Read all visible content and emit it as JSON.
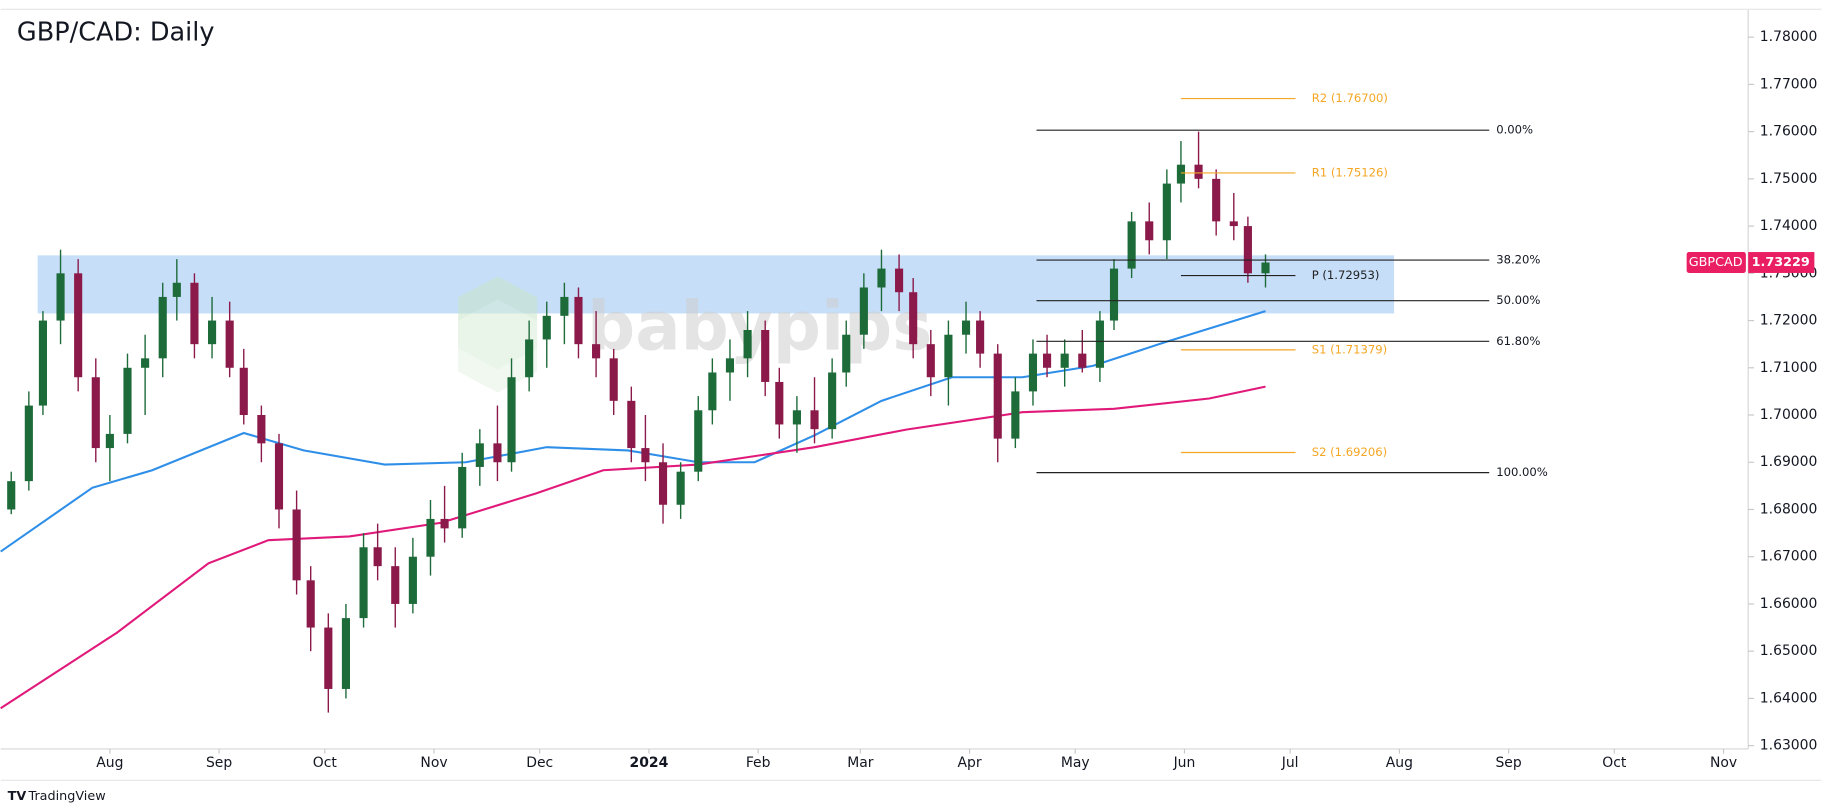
{
  "chart_data": {
    "type": "candlestick",
    "title": "GBP/CAD: Daily",
    "symbol": "GBPCAD",
    "last_price": 1.73229,
    "watermark": "babypips",
    "footer": "TradingView",
    "up_color": "#1e6b3a",
    "down_color": "#8b1a4a",
    "x": [
      3,
      8,
      12,
      17,
      22,
      27,
      31,
      36,
      41,
      46,
      50,
      55,
      60,
      65,
      69,
      74,
      79,
      84,
      88,
      93,
      98,
      103,
      107,
      112,
      117,
      122,
      126,
      131,
      136,
      141,
      145,
      150,
      155,
      160,
      164,
      169,
      174,
      179,
      183,
      188,
      193,
      198,
      202,
      207,
      212,
      217,
      221,
      226,
      231,
      236,
      240,
      245,
      250,
      255,
      259,
      264,
      269,
      274,
      278,
      283,
      288,
      293,
      297,
      302,
      307,
      312,
      316,
      321,
      326,
      331,
      335,
      340,
      345,
      350,
      354,
      359
    ],
    "open": [
      1.68,
      1.686,
      1.702,
      1.72,
      1.73,
      1.708,
      1.693,
      1.696,
      1.71,
      1.712,
      1.725,
      1.728,
      1.715,
      1.72,
      1.71,
      1.7,
      1.694,
      1.68,
      1.665,
      1.655,
      1.642,
      1.657,
      1.672,
      1.668,
      1.66,
      1.67,
      1.678,
      1.676,
      1.689,
      1.694,
      1.69,
      1.708,
      1.716,
      1.721,
      1.725,
      1.715,
      1.712,
      1.703,
      1.693,
      1.69,
      1.681,
      1.688,
      1.701,
      1.709,
      1.712,
      1.718,
      1.707,
      1.698,
      1.701,
      1.697,
      1.709,
      1.717,
      1.727,
      1.731,
      1.726,
      1.715,
      1.708,
      1.717,
      1.72,
      1.713,
      1.695,
      1.705,
      1.713,
      1.71,
      1.713,
      1.71,
      1.72,
      1.731,
      1.741,
      1.737,
      1.749,
      1.753,
      1.75,
      1.741,
      1.74,
      1.73
    ],
    "high": [
      1.688,
      1.705,
      1.722,
      1.735,
      1.733,
      1.712,
      1.7,
      1.713,
      1.717,
      1.728,
      1.733,
      1.73,
      1.725,
      1.724,
      1.714,
      1.702,
      1.696,
      1.684,
      1.668,
      1.658,
      1.66,
      1.675,
      1.677,
      1.672,
      1.674,
      1.682,
      1.685,
      1.692,
      1.697,
      1.702,
      1.712,
      1.72,
      1.724,
      1.728,
      1.727,
      1.722,
      1.714,
      1.706,
      1.7,
      1.694,
      1.69,
      1.704,
      1.712,
      1.716,
      1.722,
      1.72,
      1.71,
      1.704,
      1.708,
      1.712,
      1.72,
      1.73,
      1.735,
      1.734,
      1.729,
      1.718,
      1.72,
      1.724,
      1.722,
      1.715,
      1.708,
      1.716,
      1.717,
      1.716,
      1.718,
      1.722,
      1.733,
      1.743,
      1.745,
      1.752,
      1.758,
      1.76,
      1.752,
      1.747,
      1.742,
      1.734
    ],
    "low": [
      1.679,
      1.684,
      1.7,
      1.715,
      1.705,
      1.69,
      1.686,
      1.694,
      1.7,
      1.708,
      1.72,
      1.712,
      1.712,
      1.708,
      1.698,
      1.69,
      1.676,
      1.662,
      1.65,
      1.637,
      1.64,
      1.655,
      1.665,
      1.655,
      1.658,
      1.666,
      1.673,
      1.674,
      1.685,
      1.686,
      1.688,
      1.705,
      1.71,
      1.715,
      1.712,
      1.708,
      1.7,
      1.69,
      1.686,
      1.677,
      1.678,
      1.686,
      1.698,
      1.703,
      1.708,
      1.704,
      1.695,
      1.692,
      1.694,
      1.695,
      1.706,
      1.714,
      1.722,
      1.722,
      1.712,
      1.704,
      1.702,
      1.713,
      1.71,
      1.69,
      1.693,
      1.702,
      1.708,
      1.706,
      1.709,
      1.707,
      1.718,
      1.729,
      1.734,
      1.733,
      1.745,
      1.748,
      1.738,
      1.737,
      1.728,
      1.727
    ],
    "close": [
      1.686,
      1.702,
      1.72,
      1.73,
      1.708,
      1.693,
      1.696,
      1.71,
      1.712,
      1.725,
      1.728,
      1.715,
      1.72,
      1.71,
      1.7,
      1.694,
      1.68,
      1.665,
      1.655,
      1.642,
      1.657,
      1.672,
      1.668,
      1.66,
      1.67,
      1.678,
      1.676,
      1.689,
      1.694,
      1.69,
      1.708,
      1.716,
      1.721,
      1.725,
      1.715,
      1.712,
      1.703,
      1.693,
      1.69,
      1.681,
      1.688,
      1.701,
      1.709,
      1.712,
      1.718,
      1.707,
      1.698,
      1.701,
      1.697,
      1.709,
      1.717,
      1.727,
      1.731,
      1.726,
      1.715,
      1.708,
      1.717,
      1.72,
      1.713,
      1.695,
      1.705,
      1.713,
      1.71,
      1.713,
      1.71,
      1.72,
      1.731,
      1.741,
      1.737,
      1.749,
      1.753,
      1.75,
      1.741,
      1.74,
      1.73,
      1.73229
    ],
    "moving_averages": [
      {
        "color": "#2f8fe8",
        "x": [
          0,
          26,
          43,
          69,
          86,
          109,
          132,
          155,
          178,
          198,
          214,
          231,
          250,
          270,
          290,
          310,
          330,
          359
        ],
        "values": [
          1.6711,
          1.6846,
          1.6883,
          1.6962,
          1.6925,
          1.6895,
          1.69,
          1.6932,
          1.6925,
          1.69,
          1.69,
          1.6957,
          1.703,
          1.708,
          1.708,
          1.7104,
          1.7153,
          1.722
        ]
      },
      {
        "color": "#e0197a",
        "x": [
          0,
          33,
          59,
          76,
          99,
          125,
          152,
          171,
          198,
          231,
          257,
          290,
          316,
          343,
          359
        ],
        "values": [
          1.6379,
          1.6539,
          1.6686,
          1.6735,
          1.6743,
          1.6772,
          1.6834,
          1.6883,
          1.6895,
          1.6932,
          1.6969,
          1.7006,
          1.7013,
          1.7035,
          1.706
        ]
      }
    ],
    "zone": {
      "xlim": [
        10.5,
        395.5
      ],
      "ylim": [
        1.7215,
        1.7338
      ],
      "color": "#bcd8f7"
    },
    "fibonacci": {
      "xlim": [
        294,
        422.5
      ],
      "color": "#222222",
      "prices": [
        1.7603,
        1.7328,
        1.7242,
        1.7156,
        1.6878
      ],
      "ratios": [
        {
          "value": 0,
          "label": "0.00%"
        },
        {
          "value": 38.2,
          "label": "38.20%"
        },
        {
          "value": 50,
          "label": "50.00%"
        },
        {
          "value": 61.8,
          "label": "61.80%"
        },
        {
          "value": 100,
          "label": "100.00%"
        }
      ]
    },
    "pivots": {
      "xlim": [
        335,
        367.5
      ],
      "values": [
        1.767,
        1.75126,
        1.72953,
        1.71379,
        1.69206
      ],
      "labels": [
        "R2 (1.76700)",
        "R1 (1.75126)",
        "P (1.72953)",
        "S1 (1.71379)",
        "S2 (1.69206)"
      ],
      "colors": [
        "#f5a623",
        "#f5a623",
        "#222222",
        "#f5a623",
        "#f5a623"
      ]
    },
    "tag_color": "#e91e63",
    "xlim": [
      0,
      496
    ],
    "xticks": [
      {
        "value": 31,
        "label": "Aug"
      },
      {
        "value": 62,
        "label": "Sep"
      },
      {
        "value": 92,
        "label": "Oct"
      },
      {
        "value": 123,
        "label": "Nov"
      },
      {
        "value": 153,
        "label": "Dec"
      },
      {
        "value": 184,
        "label": "2024"
      },
      {
        "value": 215,
        "label": "Feb"
      },
      {
        "value": 244,
        "label": "Mar"
      },
      {
        "value": 275,
        "label": "Apr"
      },
      {
        "value": 305,
        "label": "May"
      },
      {
        "value": 336,
        "label": "Jun"
      },
      {
        "value": 366,
        "label": "Jul"
      },
      {
        "value": 397,
        "label": "Aug"
      },
      {
        "value": 428,
        "label": "Sep"
      },
      {
        "value": 458,
        "label": "Oct"
      },
      {
        "value": 489,
        "label": "Nov"
      }
    ],
    "ylim": [
      1.6293,
      1.7859
    ],
    "yticks": [
      {
        "value": 1.63,
        "label": "1.63000"
      },
      {
        "value": 1.64,
        "label": "1.64000"
      },
      {
        "value": 1.65,
        "label": "1.65000"
      },
      {
        "value": 1.66,
        "label": "1.66000"
      },
      {
        "value": 1.67,
        "label": "1.67000"
      },
      {
        "value": 1.68,
        "label": "1.68000"
      },
      {
        "value": 1.69,
        "label": "1.69000"
      },
      {
        "value": 1.7,
        "label": "1.70000"
      },
      {
        "value": 1.71,
        "label": "1.71000"
      },
      {
        "value": 1.72,
        "label": "1.72000"
      },
      {
        "value": 1.73,
        "label": "1.73000"
      },
      {
        "value": 1.74,
        "label": "1.74000"
      },
      {
        "value": 1.75,
        "label": "1.75000"
      },
      {
        "value": 1.76,
        "label": "1.76000"
      },
      {
        "value": 1.77,
        "label": "1.77000"
      },
      {
        "value": 1.78,
        "label": "1.78000"
      }
    ]
  }
}
